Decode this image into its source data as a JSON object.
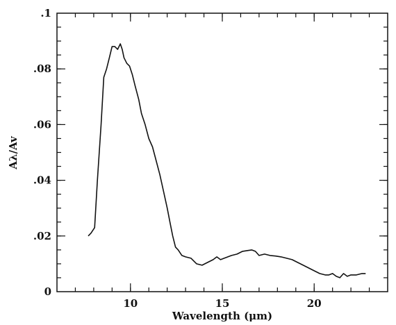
{
  "chart_data": {
    "type": "line",
    "title": "",
    "xlabel": "Wavelength (μm)",
    "ylabel": "Aλ/Av",
    "xlim": [
      6.0,
      24.0
    ],
    "ylim": [
      0,
      0.1
    ],
    "grid": false,
    "x_ticks": [
      10,
      15,
      20
    ],
    "x_tick_labels": [
      "10",
      "15",
      "20"
    ],
    "x_minor_step": 1,
    "y_ticks": [
      0,
      0.02,
      0.04,
      0.06,
      0.08,
      0.1
    ],
    "y_tick_labels": [
      "0",
      ".02",
      ".04",
      ".06",
      ".08",
      ".1"
    ],
    "y_minor_step": 0.005,
    "line_color": "#111111",
    "series": [
      {
        "x": [
          7.7,
          7.85,
          8.05,
          8.2,
          8.4,
          8.55,
          8.7,
          8.85,
          9.0,
          9.15,
          9.3,
          9.45,
          9.55,
          9.65,
          9.8,
          9.95,
          10.1,
          10.25,
          10.45,
          10.6,
          10.8,
          11.0,
          11.2,
          11.4,
          11.6,
          11.8,
          12.0,
          12.15,
          12.3,
          12.45,
          12.6,
          12.8,
          13.0,
          13.3,
          13.6,
          13.9,
          14.2,
          14.5,
          14.7,
          14.9,
          15.1,
          15.3,
          15.5,
          15.8,
          16.1,
          16.4,
          16.6,
          16.8,
          17.0,
          17.3,
          17.6,
          17.9,
          18.2,
          18.5,
          18.8,
          19.1,
          19.4,
          19.7,
          20.0,
          20.3,
          20.6,
          20.8,
          21.0,
          21.2,
          21.4,
          21.6,
          21.8,
          22.0,
          22.3,
          22.6,
          22.8
        ],
        "y": [
          0.02,
          0.021,
          0.023,
          0.04,
          0.06,
          0.077,
          0.08,
          0.084,
          0.088,
          0.088,
          0.087,
          0.089,
          0.087,
          0.084,
          0.082,
          0.081,
          0.078,
          0.074,
          0.069,
          0.064,
          0.06,
          0.055,
          0.052,
          0.047,
          0.042,
          0.036,
          0.03,
          0.025,
          0.02,
          0.016,
          0.015,
          0.013,
          0.0125,
          0.012,
          0.01,
          0.0095,
          0.0105,
          0.0115,
          0.0125,
          0.0115,
          0.012,
          0.0125,
          0.013,
          0.0135,
          0.0145,
          0.0148,
          0.015,
          0.0145,
          0.013,
          0.0135,
          0.013,
          0.0128,
          0.0125,
          0.012,
          0.0115,
          0.0105,
          0.0095,
          0.0085,
          0.0075,
          0.0065,
          0.006,
          0.006,
          0.0065,
          0.0055,
          0.005,
          0.0065,
          0.0055,
          0.006,
          0.006,
          0.0065,
          0.0065
        ]
      }
    ]
  }
}
